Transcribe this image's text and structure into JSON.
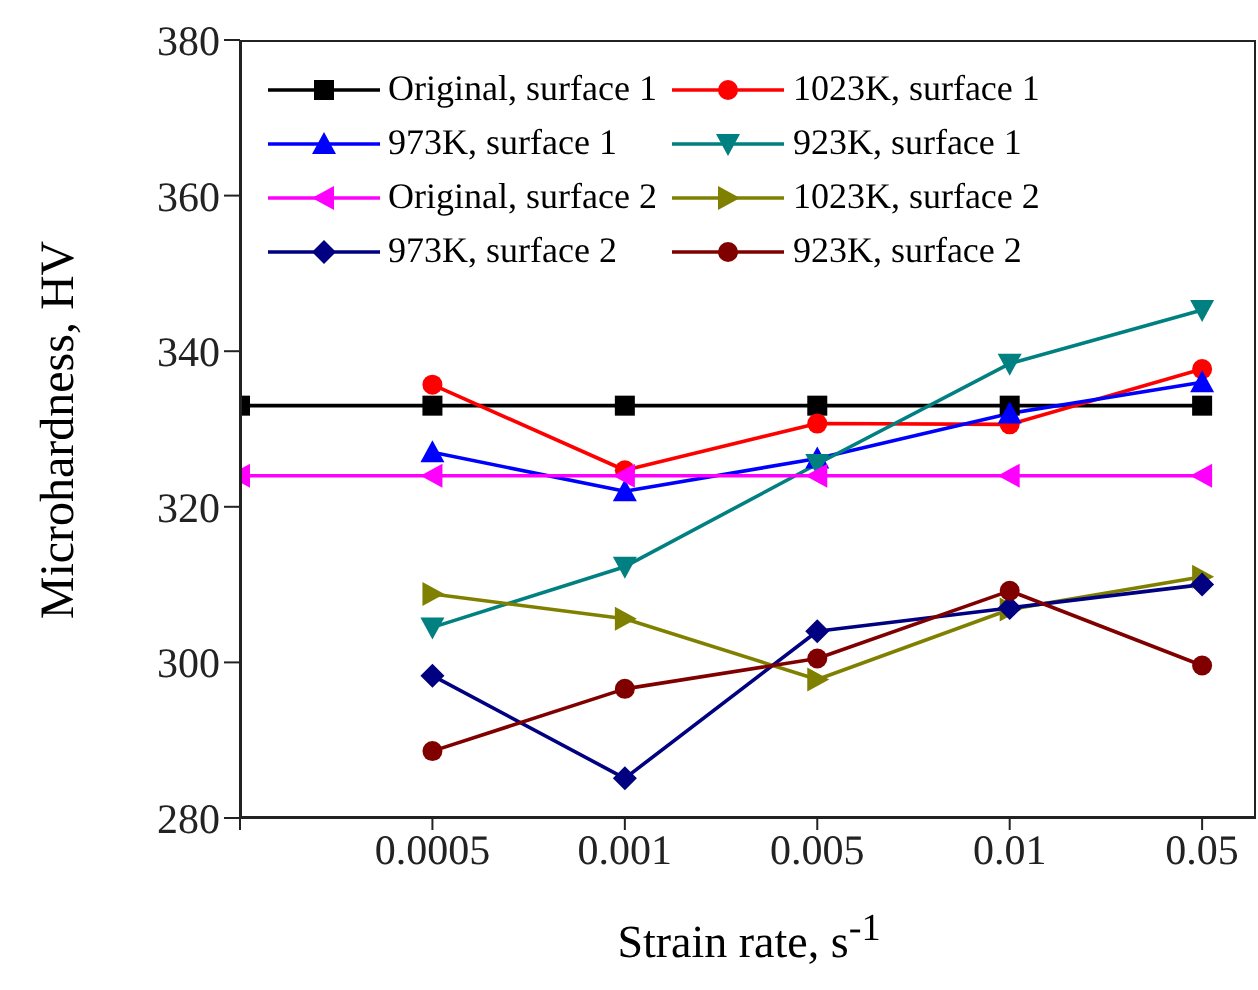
{
  "chart_data": {
    "type": "line",
    "xlabel": "Strain rate, s$^{-1}$",
    "ylabel": "Microhardness, HV",
    "categories": [
      null,
      "0.0005",
      "0.001",
      "0.005",
      "0.01",
      "0.05"
    ],
    "ylim": [
      280,
      380
    ],
    "yticks": [
      280,
      300,
      320,
      340,
      360,
      380
    ],
    "legend": "top",
    "line_style": "solid",
    "series": [
      {
        "name": "Original, surface 1",
        "color": "#000000",
        "marker": "square",
        "values": [
          333,
          333,
          333,
          333,
          333,
          333
        ]
      },
      {
        "name": "1023K, surface 1",
        "color": "#ff0000",
        "marker": "circle",
        "values": [
          null,
          335.7,
          324.7,
          330.7,
          330.6,
          337.7
        ]
      },
      {
        "name": "973K, surface 1",
        "color": "#0000ff",
        "marker": "triangle",
        "values": [
          null,
          327,
          322,
          326.2,
          332,
          336
        ]
      },
      {
        "name": "923K, surface 1",
        "color": "#008080",
        "marker": "triangle-down",
        "values": [
          null,
          304.5,
          312.3,
          325.5,
          338.4,
          345.3
        ]
      },
      {
        "name": "Original, surface 2",
        "color": "#ff00ff",
        "marker": "triangle-left",
        "values": [
          324,
          324,
          324,
          324,
          324,
          324
        ]
      },
      {
        "name": "1023K, surface 2",
        "color": "#808000",
        "marker": "triangle-right",
        "values": [
          null,
          308.8,
          305.6,
          297.8,
          306.8,
          311
        ]
      },
      {
        "name": "973K, surface 2",
        "color": "#000080",
        "marker": "diamond",
        "values": [
          null,
          298.3,
          285.1,
          304,
          307,
          310
        ]
      },
      {
        "name": "923K, surface 2",
        "color": "#800000",
        "marker": "circle",
        "values": [
          null,
          288.6,
          296.6,
          300.5,
          309.2,
          299.6
        ]
      }
    ]
  }
}
